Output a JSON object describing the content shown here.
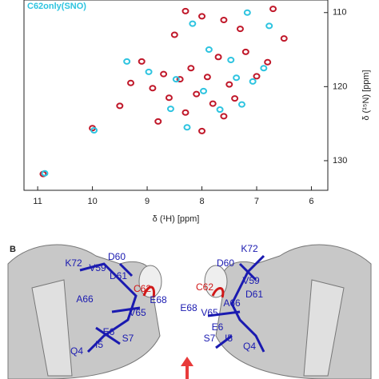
{
  "chart_data": {
    "type": "scatter",
    "xlabel": "δ (¹H) [ppm]",
    "ylabel": "δ (¹⁵N) [ppm]",
    "xlim": [
      11.25,
      5.7
    ],
    "ylim": [
      108.3,
      134
    ],
    "xticks": [
      11,
      10,
      9,
      8,
      7,
      6
    ],
    "yticks": [
      110,
      120,
      130
    ],
    "series": [
      {
        "color": "#c0182a",
        "x": [
          10.9,
          10.0,
          9.5,
          9.1,
          8.5,
          8.3,
          8.0,
          7.6,
          7.3,
          6.7,
          6.5,
          8.7,
          8.4,
          8.2,
          7.9,
          7.7,
          7.5,
          8.1,
          7.8,
          8.6,
          8.9,
          8.3,
          7.6,
          7.0,
          6.8,
          8.0,
          7.4,
          8.8,
          9.3,
          7.2
        ],
        "values": [
          131.8,
          125.6,
          122.6,
          116.6,
          113.0,
          109.8,
          110.5,
          111.0,
          112.2,
          109.5,
          113.5,
          118.3,
          119.0,
          117.5,
          118.7,
          116.0,
          119.7,
          121.0,
          122.3,
          121.5,
          120.2,
          123.5,
          124.0,
          118.6,
          116.7,
          126.0,
          121.6,
          124.7,
          119.5,
          115.3
        ]
      },
      {
        "name": "C62only(SNO)",
        "color": "#2ec4e0",
        "x": [
          10.9,
          10.0,
          9.4,
          8.2,
          7.2,
          6.8,
          7.9,
          7.5,
          8.5,
          7.1,
          8.0,
          7.3,
          7.7,
          6.9,
          8.3,
          8.6,
          7.4,
          9.0
        ],
        "values": [
          131.7,
          125.9,
          116.6,
          111.5,
          110.0,
          111.8,
          115.0,
          116.4,
          119.0,
          119.3,
          120.6,
          122.4,
          123.1,
          117.5,
          125.5,
          123.0,
          118.8,
          118.0
        ]
      }
    ]
  },
  "panel_b": {
    "label": "B",
    "left_labels": [
      "K72",
      "V59",
      "D60",
      "D61",
      "C62",
      "A66",
      "E68",
      "V65",
      "E6",
      "S7",
      "I5",
      "Q4"
    ],
    "right_labels": [
      "D60",
      "K72",
      "V59",
      "C62",
      "D61",
      "A66",
      "E68",
      "V65",
      "E6",
      "S7",
      "I5",
      "Q4"
    ]
  }
}
